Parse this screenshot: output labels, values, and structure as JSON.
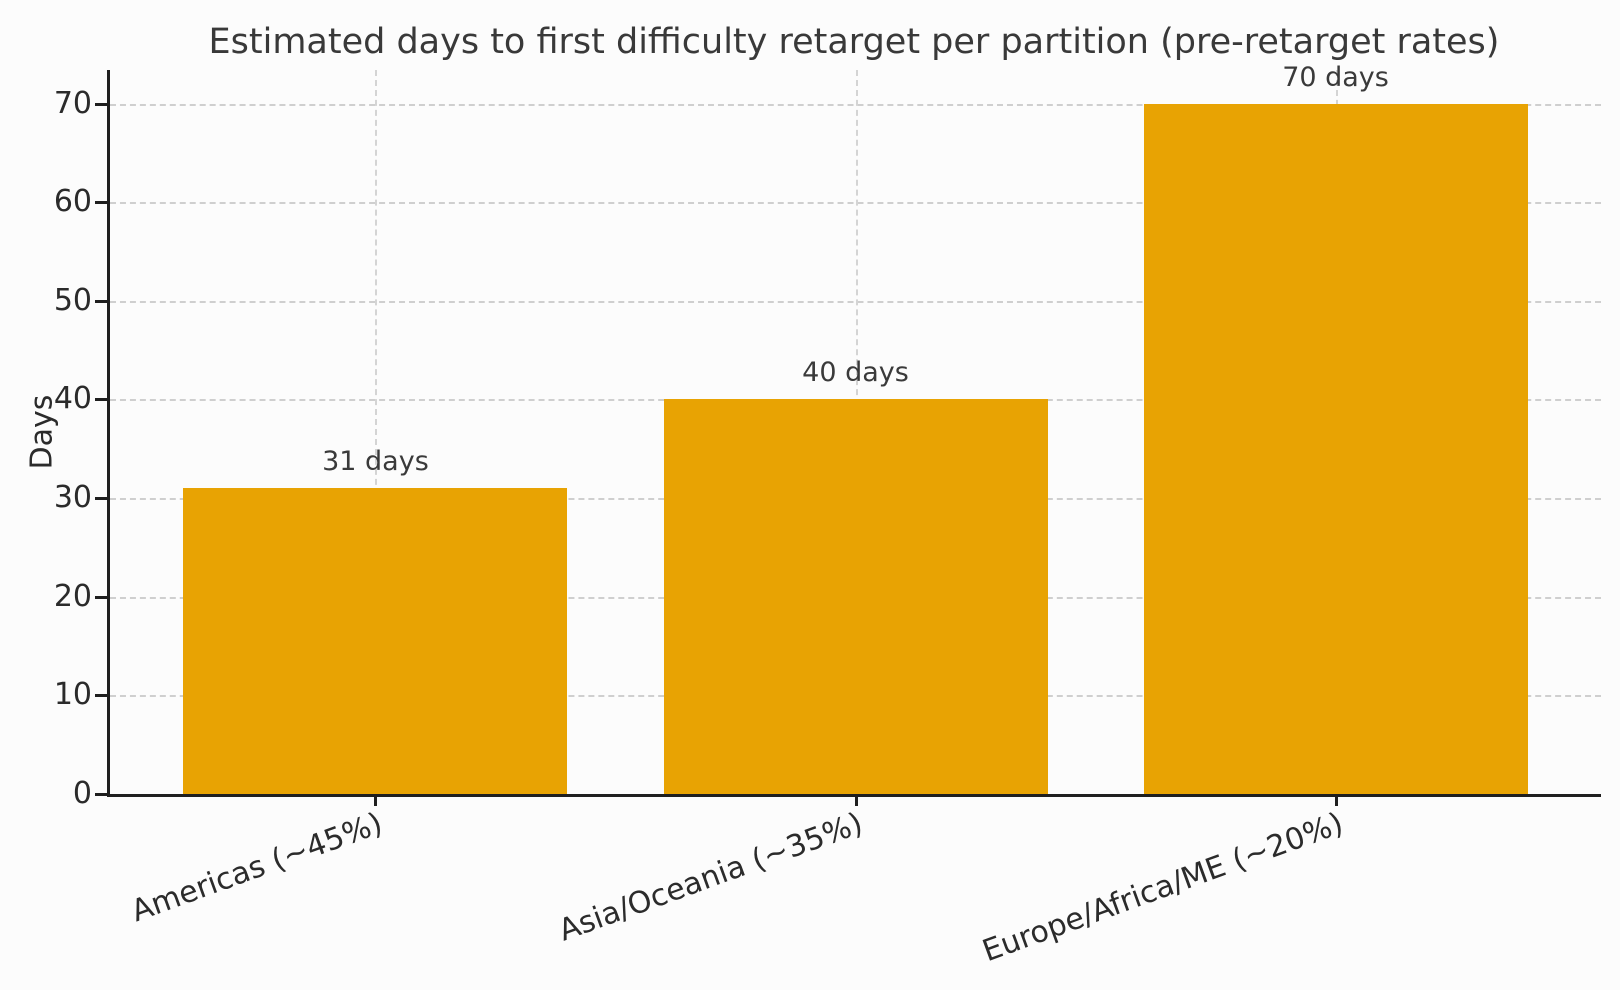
{
  "chart_data": {
    "type": "bar",
    "title": "Estimated days to first difficulty retarget per partition (pre-retarget rates)",
    "xlabel": "",
    "ylabel": "Days",
    "categories": [
      "Americas (~45%)",
      "Asia/Oceania (~35%)",
      "Europe/Africa/ME (~20%)"
    ],
    "values": [
      31,
      40,
      70
    ],
    "bar_labels": [
      "31 days",
      "40 days",
      "70 days"
    ],
    "yticks": [
      0,
      10,
      20,
      30,
      40,
      50,
      60,
      70
    ],
    "ylim": [
      0,
      73
    ],
    "grid": "dashed gridlines on both axes, drawn behind bars",
    "legend_position": "none",
    "x_tick_label_rotation_deg": 20,
    "colors": {
      "bar": "#e8a303",
      "grid": "#cfcfcf",
      "axis": "#1f1f1f",
      "text": "#3a3a3a",
      "background": "#fcfcfc"
    }
  }
}
